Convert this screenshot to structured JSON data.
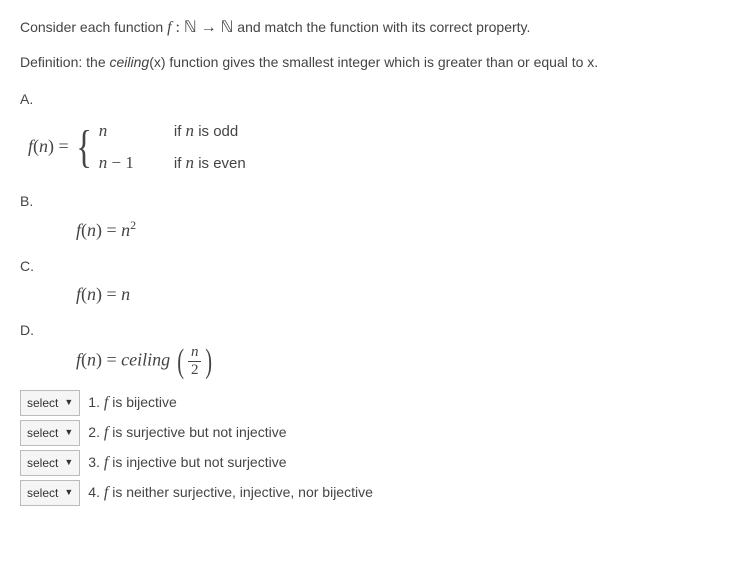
{
  "intro_pre": "Consider each function  ",
  "intro_func": "f",
  "intro_colon": " : ",
  "intro_N1": "ℕ",
  "intro_arrow": " → ",
  "intro_N2": "ℕ",
  "intro_post": "  and match the function with its correct property.",
  "definition_pre": "Definition: the ",
  "definition_ceil": "ceiling",
  "definition_post": "(x) function gives the smallest integer which is greater than or equal to x.",
  "labels": {
    "A": "A.",
    "B": "B.",
    "C": "C.",
    "D": "D."
  },
  "formulaA": {
    "lhs_f": "f",
    "lhs_paren_open": "(",
    "lhs_n": "n",
    "lhs_paren_close": ")",
    "eq": " = ",
    "case1_val": "n",
    "case1_cond_if": "if ",
    "case1_cond_n": "n",
    "case1_cond_rest": " is odd",
    "case2_n": "n",
    "case2_minus": " − ",
    "case2_one": "1",
    "case2_cond_if": "if ",
    "case2_cond_n": "n",
    "case2_cond_rest": " is even"
  },
  "formulaB": {
    "f": "f",
    "open": "(",
    "n": "n",
    "close": ")",
    "eq": " = ",
    "rhs_n": "n",
    "rhs_exp": "2"
  },
  "formulaC": {
    "f": "f",
    "open": "(",
    "n": "n",
    "close": ")",
    "eq": " = ",
    "rhs": "n"
  },
  "formulaD": {
    "f": "f",
    "open": "(",
    "n": "n",
    "close": ")",
    "eq": " = ",
    "ceil": "ceiling ",
    "num": "n",
    "den": "2"
  },
  "select_label": "select",
  "options": {
    "1": {
      "num": "1. ",
      "f": "f",
      "rest": " is bijective"
    },
    "2": {
      "num": "2. ",
      "f": "f",
      "rest": " is surjective but not injective"
    },
    "3": {
      "num": "3. ",
      "f": "f",
      "rest": " is injective but not surjective"
    },
    "4": {
      "num": "4. ",
      "f": "f",
      "rest": " is neither surjective, injective, nor bijective"
    }
  }
}
